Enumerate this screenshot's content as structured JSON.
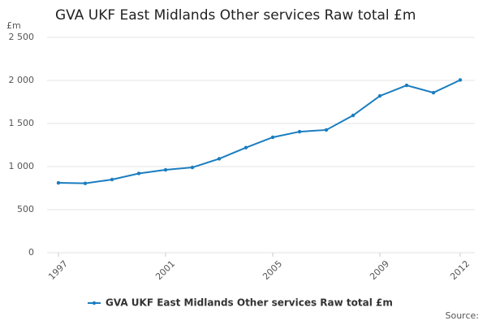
{
  "chart_data": {
    "type": "line",
    "title": "GVA UKF East Midlands Other services Raw total £m",
    "y_label": "£m",
    "source": "Source:",
    "x": [
      1997,
      1998,
      1999,
      2000,
      2001,
      2002,
      2003,
      2004,
      2005,
      2006,
      2007,
      2008,
      2009,
      2010,
      2011,
      2012
    ],
    "series": [
      {
        "name": "GVA UKF East Midlands Other services Raw total £m",
        "color": "#1a7dc0",
        "values": [
          811,
          805,
          849,
          920,
          962,
          990,
          1090,
          1220,
          1340,
          1405,
          1425,
          1594,
          1820,
          1943,
          1858,
          2005
        ]
      }
    ],
    "xlim": [
      1997,
      2012
    ],
    "xticks": [
      1997,
      2001,
      2005,
      2009,
      2012
    ],
    "ylim": [
      0,
      2500
    ],
    "yticks": [
      0,
      500,
      {
        "value": 1000,
        "label": "1 000"
      },
      {
        "value": 1500,
        "label": "1 500"
      },
      {
        "value": 2000,
        "label": "2 000"
      },
      {
        "value": 2500,
        "label": "2 500"
      }
    ],
    "grid": true
  }
}
